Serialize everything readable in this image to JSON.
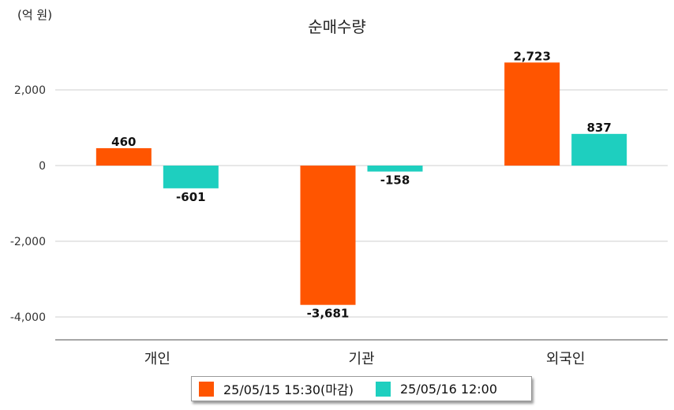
{
  "unit_label": "(억 원)",
  "chart_data": {
    "type": "bar",
    "title": "순매수량",
    "categories": [
      "개인",
      "기관",
      "외국인"
    ],
    "series": [
      {
        "name": "25/05/15 15:30(마감)",
        "color": "#ff5500",
        "values": [
          460,
          -3681,
          2723
        ],
        "labels": [
          "460",
          "-3,681",
          "2,723"
        ]
      },
      {
        "name": "25/05/16 12:00",
        "color": "#1ecfbf",
        "values": [
          -601,
          -158,
          837
        ],
        "labels": [
          "-601",
          "-158",
          "837"
        ]
      }
    ],
    "yticks": [
      2000,
      0,
      -2000,
      -4000
    ],
    "ytick_labels": [
      "2,000",
      "0",
      "-2,000",
      "-4,000"
    ],
    "ylim": [
      -4600,
      3000
    ],
    "grid": true,
    "legend_position": "bottom"
  }
}
